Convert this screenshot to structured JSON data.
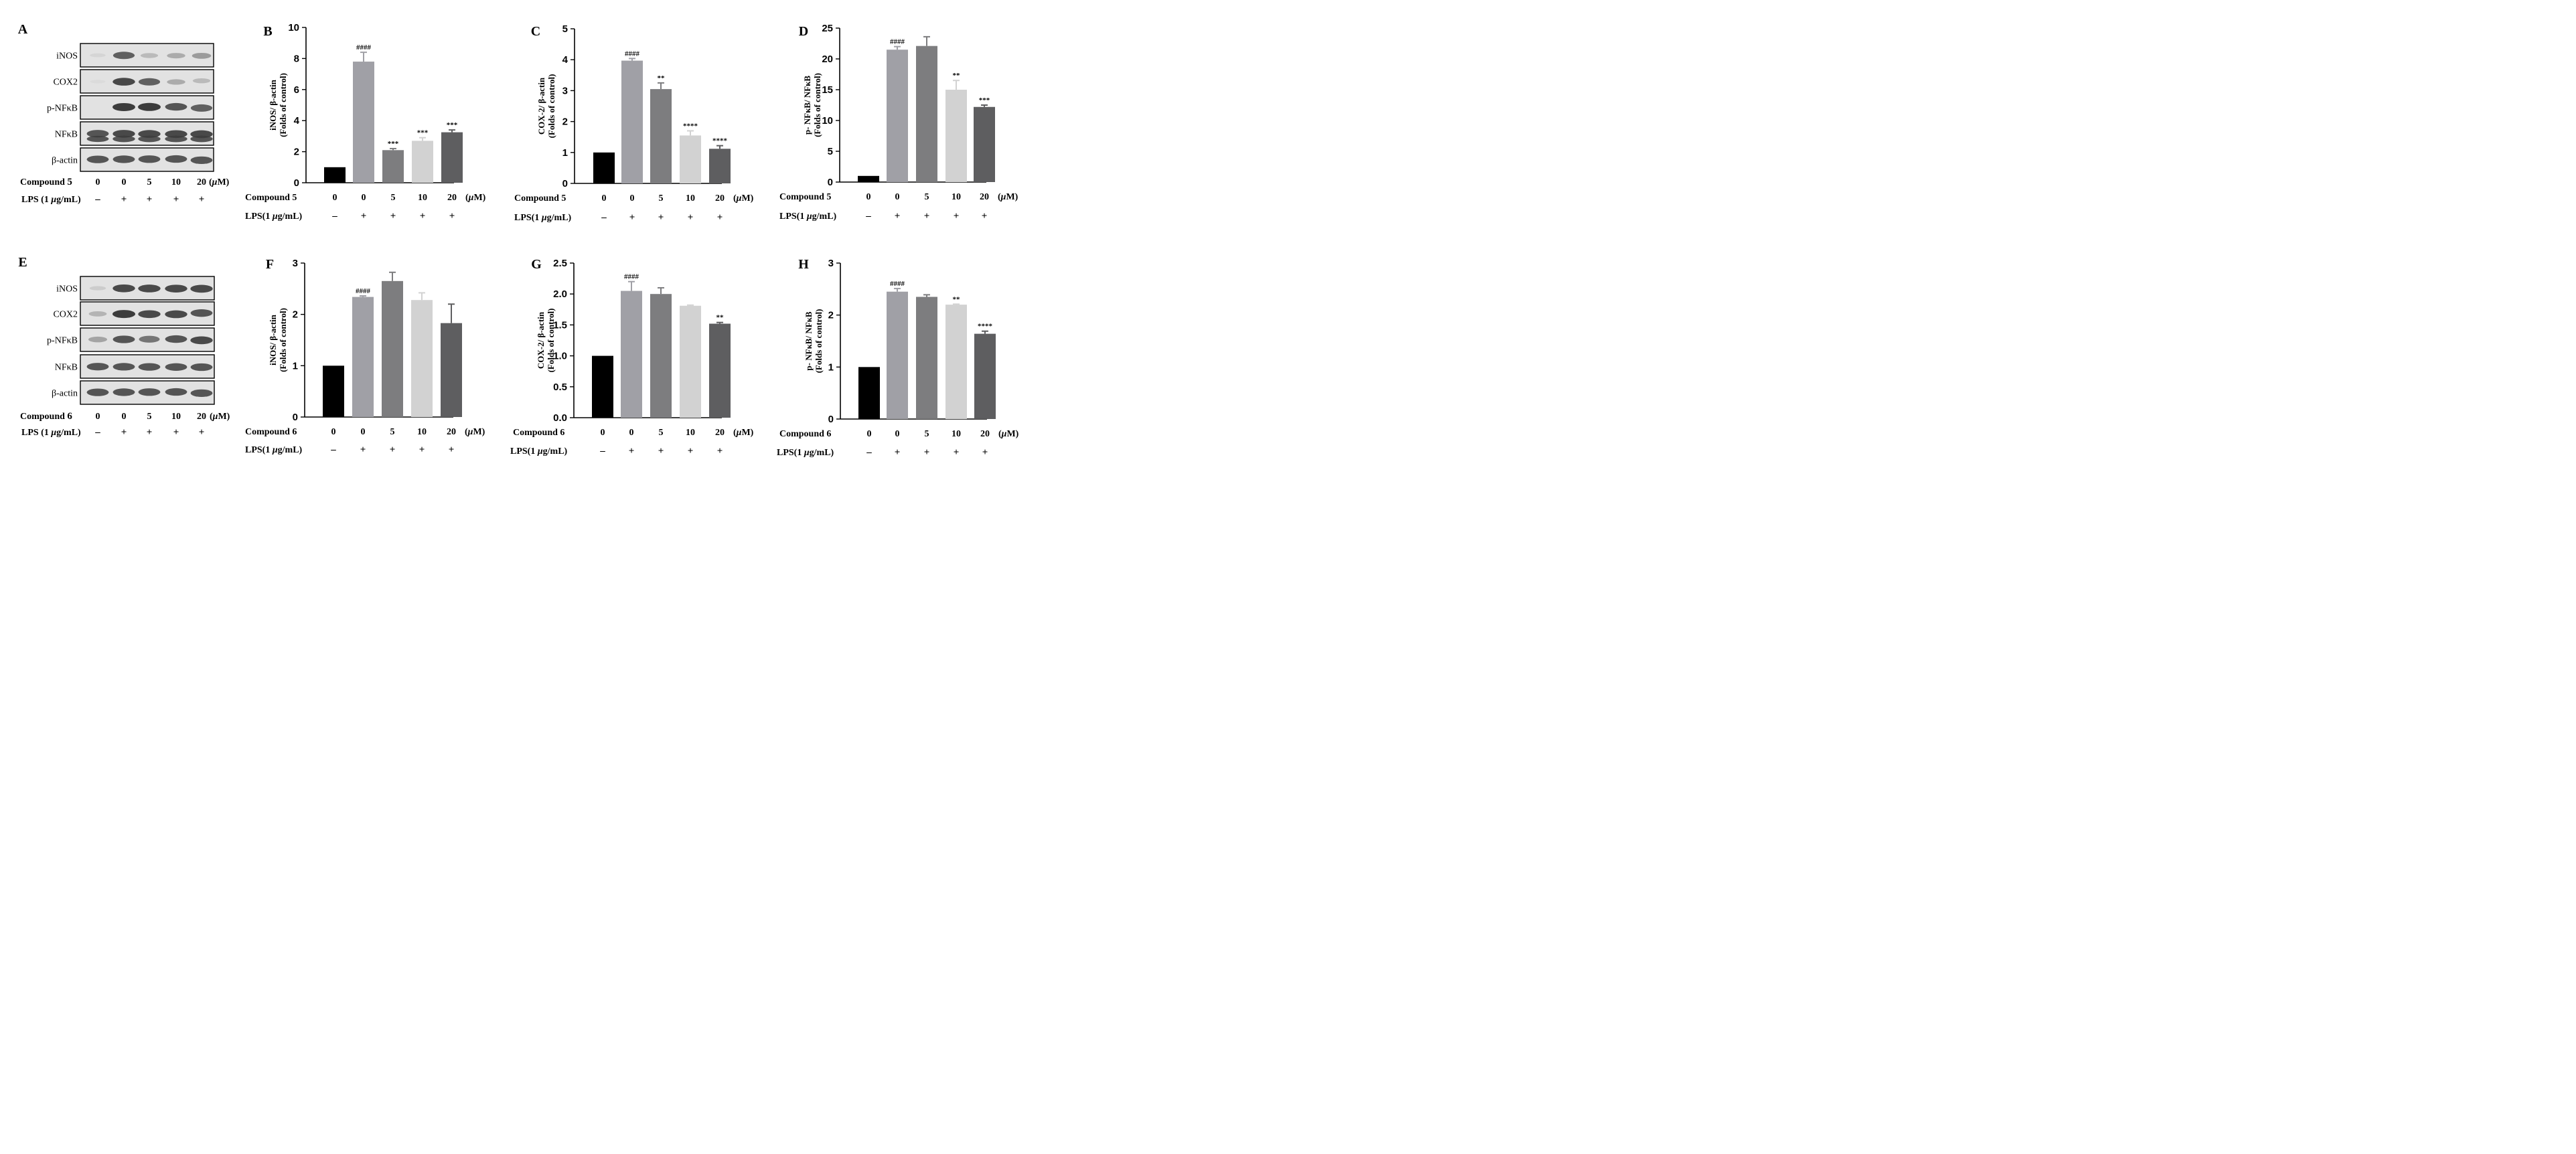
{
  "blots": [
    {
      "panel": "A",
      "rows": [
        "iNOS",
        "COX2",
        "p-NFκB",
        "NFκB",
        "β-actin"
      ],
      "compound_label": "Compound",
      "compound_number": "5",
      "compound_values": [
        "0",
        "0",
        "5",
        "10",
        "20"
      ],
      "unit": "(μM)",
      "lps_label": "LPS (1 μg/mL)",
      "lps_values": [
        "–",
        "+",
        "+",
        "+",
        "+"
      ],
      "band_intensity": [
        [
          0.12,
          0.85,
          0.35,
          0.45,
          0.55
        ],
        [
          0.05,
          0.95,
          0.85,
          0.45,
          0.35
        ],
        [
          0.0,
          1.0,
          1.0,
          0.9,
          0.85
        ],
        [
          0.9,
          0.95,
          0.95,
          0.95,
          0.95
        ],
        [
          0.9,
          0.9,
          0.9,
          0.9,
          0.9
        ]
      ]
    },
    {
      "panel": "E",
      "rows": [
        "iNOS",
        "COX2",
        "p-NFκB",
        "NFκB",
        "β-actin"
      ],
      "compound_label": "Compound",
      "compound_number": "6",
      "compound_values": [
        "0",
        "0",
        "5",
        "10",
        "20"
      ],
      "unit": "(μM)",
      "lps_label": "LPS (1 μg/mL)",
      "lps_values": [
        "–",
        "+",
        "+",
        "+",
        "+"
      ],
      "band_intensity": [
        [
          0.2,
          0.95,
          0.95,
          0.95,
          0.95
        ],
        [
          0.4,
          1.0,
          0.95,
          0.95,
          0.9
        ],
        [
          0.5,
          0.9,
          0.75,
          0.9,
          0.95
        ],
        [
          0.9,
          0.9,
          0.9,
          0.9,
          0.9
        ],
        [
          0.9,
          0.9,
          0.9,
          0.9,
          0.9
        ]
      ]
    }
  ],
  "chart_data": [
    {
      "panel": "B",
      "type": "bar",
      "ylabel": "iNOS/ β-actin",
      "ylabel2": "(Folds of control)",
      "ylim": [
        0,
        10
      ],
      "ticks": [
        "0",
        "2",
        "4",
        "6",
        "8",
        "10"
      ],
      "categories": [
        "0",
        "0",
        "5",
        "10",
        "20"
      ],
      "values": [
        1,
        7.8,
        2.1,
        2.7,
        3.25
      ],
      "errors": [
        0,
        0.6,
        0.1,
        0.2,
        0.15
      ],
      "annotations": [
        "",
        "####",
        "***",
        "***",
        "***"
      ],
      "compound_label": "Compound 5",
      "unit": "(μM)",
      "lps_label": "LPS(1 μg/mL)",
      "lps_values": [
        "–",
        "+",
        "+",
        "+",
        "+"
      ]
    },
    {
      "panel": "C",
      "type": "bar",
      "ylabel": "COX-2/ β-actin",
      "ylabel2": "(Folds of control)",
      "ylim": [
        0,
        5
      ],
      "ticks": [
        "0",
        "1",
        "2",
        "3",
        "4",
        "5"
      ],
      "categories": [
        "0",
        "0",
        "5",
        "10",
        "20"
      ],
      "values": [
        1,
        3.97,
        3.05,
        1.55,
        1.12
      ],
      "errors": [
        0,
        0.07,
        0.2,
        0.15,
        0.1
      ],
      "annotations": [
        "",
        "####",
        "**",
        "****",
        "****"
      ],
      "compound_label": "Compound 5",
      "unit": "(μM)",
      "lps_label": "LPS(1 μg/mL)",
      "lps_values": [
        "–",
        "+",
        "+",
        "+",
        "+"
      ]
    },
    {
      "panel": "D",
      "type": "bar",
      "ylabel": "p- NFκB/ NFκB",
      "ylabel2": "(Folds of control)",
      "ylim": [
        0,
        25
      ],
      "ticks": [
        "0",
        "5",
        "10",
        "15",
        "20",
        "25"
      ],
      "categories": [
        "0",
        "0",
        "5",
        "10",
        "20"
      ],
      "values": [
        1,
        21.5,
        22.1,
        15.0,
        12.2
      ],
      "errors": [
        0,
        0.5,
        1.5,
        1.5,
        0.3
      ],
      "annotations": [
        "",
        "####",
        "",
        "**",
        "***"
      ],
      "compound_label": "Compound 5",
      "unit": "(μM)",
      "lps_label": "LPS(1 μg/mL)",
      "lps_values": [
        "–",
        "+",
        "+",
        "+",
        "+"
      ]
    },
    {
      "panel": "F",
      "type": "bar",
      "ylabel": "iNOS/ β-actin",
      "ylabel2": "(Folds of control)",
      "ylim": [
        0,
        3
      ],
      "ticks": [
        "0",
        "1",
        "2",
        "3"
      ],
      "categories": [
        "0",
        "0",
        "5",
        "10",
        "20"
      ],
      "values": [
        1,
        2.34,
        2.65,
        2.28,
        1.83
      ],
      "errors": [
        0,
        0.02,
        0.17,
        0.14,
        0.37
      ],
      "annotations": [
        "",
        "####",
        "",
        "",
        ""
      ],
      "compound_label": "Compound 6",
      "unit": "(μM)",
      "lps_label": "LPS(1 μg/mL)",
      "lps_values": [
        "–",
        "+",
        "+",
        "+",
        "+"
      ]
    },
    {
      "panel": "G",
      "type": "bar",
      "ylabel": "COX-2/ β-actin",
      "ylabel2": "(Folds of control)",
      "ylim": [
        0,
        2.5
      ],
      "ticks": [
        "0.0",
        "0.5",
        "1.0",
        "1.5",
        "2.0",
        "2.5"
      ],
      "categories": [
        "0",
        "0",
        "5",
        "10",
        "20"
      ],
      "values": [
        1,
        2.05,
        2.0,
        1.81,
        1.52
      ],
      "errors": [
        0,
        0.15,
        0.1,
        0.01,
        0.02
      ],
      "annotations": [
        "",
        "####",
        "",
        "",
        "**"
      ],
      "compound_label": "Compound 6",
      "unit": "(μM)",
      "lps_label": "LPS(1 μg/mL)",
      "lps_values": [
        "–",
        "+",
        "+",
        "+",
        "+"
      ]
    },
    {
      "panel": "H",
      "type": "bar",
      "ylabel": "p- NFκB/ NFκB",
      "ylabel2": "(Folds of control)",
      "ylim": [
        0,
        3
      ],
      "ticks": [
        "0",
        "1",
        "2",
        "3"
      ],
      "categories": [
        "0",
        "0",
        "5",
        "10",
        "20"
      ],
      "values": [
        1,
        2.45,
        2.35,
        2.2,
        1.64
      ],
      "errors": [
        0,
        0.06,
        0.04,
        0.01,
        0.05
      ],
      "annotations": [
        "",
        "####",
        "",
        "**",
        "****"
      ],
      "compound_label": "Compound 6",
      "unit": "(μM)",
      "lps_label": "LPS(1 μg/mL)",
      "lps_values": [
        "–",
        "+",
        "+",
        "+",
        "+"
      ]
    }
  ],
  "colors": {
    "bars": [
      "#000000",
      "#a0a0a6",
      "#7d7d7f",
      "#d2d2d2",
      "#5e5e60"
    ],
    "axis": "#000000",
    "blot_bg": "#e2e2e2"
  }
}
